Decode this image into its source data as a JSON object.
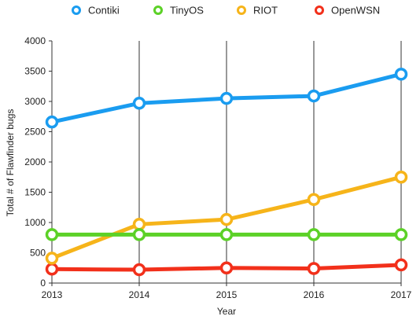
{
  "chart_data": {
    "type": "line",
    "title": "",
    "xlabel": "Year",
    "ylabel": "Total # of Flawfinder bugs",
    "x": [
      "2013",
      "2014",
      "2015",
      "2016",
      "2017"
    ],
    "ylim": [
      0,
      4000
    ],
    "yticks": [
      0,
      500,
      1000,
      1500,
      2000,
      2500,
      3000,
      3500,
      4000
    ],
    "grid": "vertical",
    "legend_position": "top",
    "series": [
      {
        "name": "Contiki",
        "color": "#1a9cf0",
        "values": [
          2660,
          2970,
          3050,
          3090,
          3450
        ]
      },
      {
        "name": "TinyOS",
        "color": "#5cd127",
        "values": [
          800,
          800,
          800,
          800,
          800
        ]
      },
      {
        "name": "RIOT",
        "color": "#f6b41a",
        "values": [
          410,
          970,
          1050,
          1380,
          1750
        ]
      },
      {
        "name": "OpenWSN",
        "color": "#f2301b",
        "values": [
          230,
          220,
          250,
          240,
          300
        ]
      }
    ]
  }
}
